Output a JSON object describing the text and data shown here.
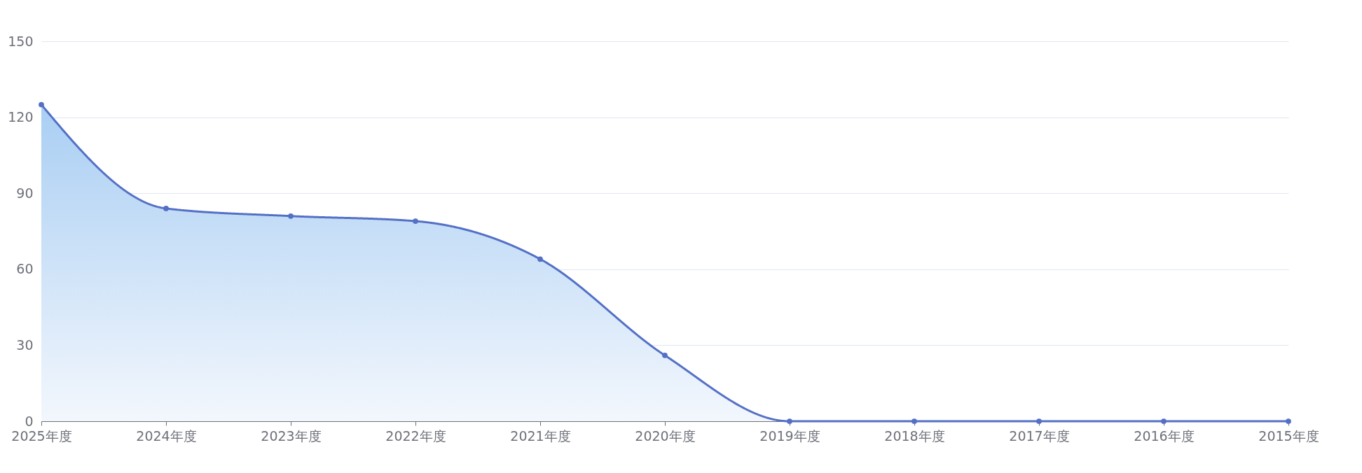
{
  "chart_data": {
    "type": "area",
    "categories": [
      "2025年度",
      "2024年度",
      "2023年度",
      "2022年度",
      "2021年度",
      "2020年度",
      "2019年度",
      "2018年度",
      "2017年度",
      "2016年度",
      "2015年度"
    ],
    "series": [
      {
        "color": "#5470c6",
        "values": [
          125,
          84,
          81,
          79,
          64,
          26,
          0,
          0,
          0,
          0,
          0
        ]
      }
    ],
    "ylim": [
      0,
      150
    ],
    "yticks": [
      0,
      30,
      60,
      90,
      120,
      150
    ],
    "grid": "y",
    "marker": "circle",
    "line_style": "solid"
  }
}
